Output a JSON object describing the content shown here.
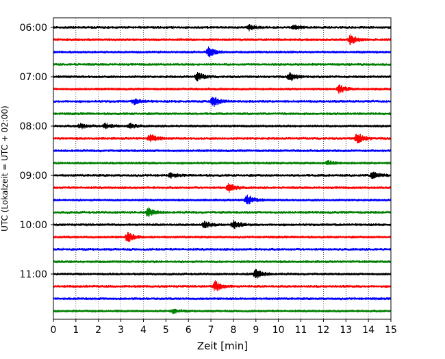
{
  "chart_data": {
    "type": "line",
    "title": "",
    "xlabel": "Zeit  [min]",
    "ylabel": "UTC (Lokalzeit = UTC + 02:00)",
    "xlim": [
      0,
      15
    ],
    "x_ticks": [
      0,
      1,
      2,
      3,
      4,
      5,
      6,
      7,
      8,
      9,
      10,
      11,
      12,
      13,
      14,
      15
    ],
    "y_tick_labels": [
      "06:00",
      "07:00",
      "08:00",
      "09:00",
      "10:00",
      "11:00"
    ],
    "grid": "vertical dotted",
    "trace_colors": [
      "#000000",
      "#ff0000",
      "#0000ff",
      "#008000"
    ],
    "traces": [
      {
        "start": "06:00",
        "events": [
          {
            "t": 8.7,
            "amp": 4
          },
          {
            "t": 10.7,
            "amp": 3
          }
        ]
      },
      {
        "start": "06:15",
        "events": [
          {
            "t": 13.2,
            "amp": 7
          }
        ]
      },
      {
        "start": "06:30",
        "events": [
          {
            "t": 6.9,
            "amp": 7
          }
        ]
      },
      {
        "start": "06:45",
        "events": []
      },
      {
        "start": "07:00",
        "events": [
          {
            "t": 6.4,
            "amp": 6
          },
          {
            "t": 10.5,
            "amp": 6
          }
        ]
      },
      {
        "start": "07:15",
        "events": [
          {
            "t": 12.7,
            "amp": 6
          }
        ]
      },
      {
        "start": "07:30",
        "events": [
          {
            "t": 3.6,
            "amp": 4
          },
          {
            "t": 7.1,
            "amp": 8
          }
        ]
      },
      {
        "start": "07:45",
        "events": []
      },
      {
        "start": "08:00",
        "events": [
          {
            "t": 1.2,
            "amp": 4
          },
          {
            "t": 2.3,
            "amp": 4
          },
          {
            "t": 3.4,
            "amp": 4
          }
        ]
      },
      {
        "start": "08:15",
        "events": [
          {
            "t": 4.3,
            "amp": 6
          },
          {
            "t": 13.5,
            "amp": 8
          }
        ]
      },
      {
        "start": "08:30",
        "events": []
      },
      {
        "start": "08:45",
        "events": [
          {
            "t": 12.2,
            "amp": 3
          }
        ]
      },
      {
        "start": "09:00",
        "events": [
          {
            "t": 5.2,
            "amp": 3
          },
          {
            "t": 14.2,
            "amp": 6
          }
        ]
      },
      {
        "start": "09:15",
        "events": [
          {
            "t": 7.8,
            "amp": 7
          }
        ]
      },
      {
        "start": "09:30",
        "events": [
          {
            "t": 8.6,
            "amp": 8
          }
        ]
      },
      {
        "start": "09:45",
        "events": [
          {
            "t": 4.2,
            "amp": 6
          }
        ]
      },
      {
        "start": "10:00",
        "events": [
          {
            "t": 6.7,
            "amp": 5
          },
          {
            "t": 8.0,
            "amp": 6
          }
        ]
      },
      {
        "start": "10:15",
        "events": [
          {
            "t": 3.3,
            "amp": 7
          }
        ]
      },
      {
        "start": "10:30",
        "events": []
      },
      {
        "start": "10:45",
        "events": []
      },
      {
        "start": "11:00",
        "events": [
          {
            "t": 9.0,
            "amp": 7
          }
        ]
      },
      {
        "start": "11:15",
        "events": [
          {
            "t": 7.2,
            "amp": 8
          }
        ]
      },
      {
        "start": "11:30",
        "events": []
      },
      {
        "start": "11:45",
        "events": [
          {
            "t": 5.3,
            "amp": 3
          }
        ]
      }
    ]
  }
}
